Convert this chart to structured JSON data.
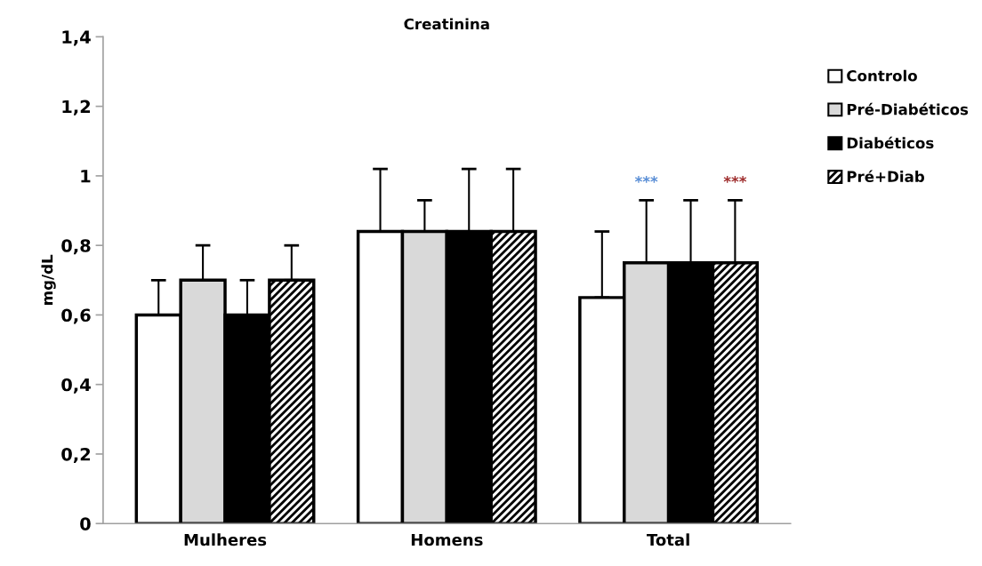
{
  "chart_data": {
    "type": "bar",
    "title": "Creatinina",
    "ylabel": "mg/dL",
    "categories": [
      "Mulheres",
      "Homens",
      "Total"
    ],
    "series": [
      {
        "name": "Controlo",
        "color": "#ffffff",
        "values": [
          0.6,
          0.84,
          0.65
        ],
        "errors": [
          0.1,
          0.18,
          0.19
        ]
      },
      {
        "name": "Pré-Diabéticos",
        "color": "#d9d9d9",
        "values": [
          0.7,
          0.84,
          0.75
        ],
        "errors": [
          0.1,
          0.09,
          0.18
        ]
      },
      {
        "name": "Diabéticos",
        "color": "#000000",
        "values": [
          0.6,
          0.84,
          0.75
        ],
        "errors": [
          0.1,
          0.18,
          0.18
        ]
      },
      {
        "name": "Pré+Diab",
        "color": "#000000",
        "values": [
          0.7,
          0.84,
          0.75
        ],
        "errors": [
          0.1,
          0.18,
          0.18
        ]
      }
    ],
    "ylim": [
      0,
      1.4
    ],
    "yticks": [
      {
        "value": 0,
        "label": "0"
      },
      {
        "value": 0.2,
        "label": "0,2"
      },
      {
        "value": 0.4,
        "label": "0,4"
      },
      {
        "value": 0.6,
        "label": "0,6"
      },
      {
        "value": 0.8,
        "label": "0,8"
      },
      {
        "value": 1,
        "label": "1"
      },
      {
        "value": 1.2,
        "label": "1,2"
      },
      {
        "value": 1.4,
        "label": "1,4"
      }
    ],
    "annotations": [
      "***",
      "***"
    ],
    "grid": false,
    "legend": "right"
  }
}
